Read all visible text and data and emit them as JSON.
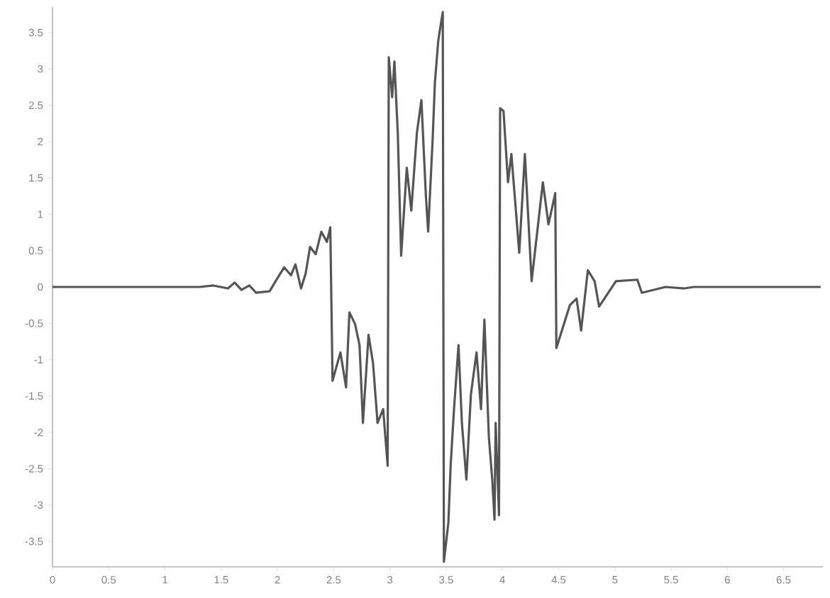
{
  "chart_data": {
    "type": "line",
    "color": "#555555",
    "x": [
      0,
      1.31,
      1.43,
      1.56,
      1.62,
      1.68,
      1.75,
      1.81,
      1.93,
      2.0,
      2.06,
      2.12,
      2.16,
      2.21,
      2.25,
      2.29,
      2.34,
      2.39,
      2.44,
      2.47,
      2.49,
      2.56,
      2.61,
      2.64,
      2.69,
      2.73,
      2.76,
      2.81,
      2.85,
      2.89,
      2.94,
      2.98,
      2.99,
      3.02,
      3.04,
      3.07,
      3.1,
      3.15,
      3.19,
      3.24,
      3.28,
      3.32,
      3.34,
      3.38,
      3.4,
      3.43,
      3.45,
      3.47,
      3.48,
      3.52,
      3.54,
      3.57,
      3.61,
      3.64,
      3.68,
      3.72,
      3.77,
      3.81,
      3.84,
      3.88,
      3.91,
      3.93,
      3.94,
      3.97,
      3.98,
      4.01,
      4.05,
      4.08,
      4.15,
      4.2,
      4.26,
      4.36,
      4.41,
      4.47,
      4.48,
      4.6,
      4.66,
      4.7,
      4.76,
      4.82,
      4.86,
      5.01,
      5.2,
      5.24,
      5.45,
      5.62,
      5.7,
      6.83
    ],
    "values": [
      0,
      0,
      0.02,
      -0.02,
      0.06,
      -0.04,
      0.02,
      -0.08,
      -0.06,
      0.12,
      0.27,
      0.16,
      0.31,
      -0.02,
      0.18,
      0.55,
      0.45,
      0.76,
      0.62,
      0.82,
      -1.29,
      -0.9,
      -1.38,
      -0.35,
      -0.51,
      -0.8,
      -1.87,
      -0.66,
      -1.05,
      -1.87,
      -1.68,
      -2.46,
      3.16,
      2.61,
      3.1,
      2.12,
      0.43,
      1.64,
      1.05,
      2.12,
      2.57,
      1.25,
      0.76,
      2.03,
      2.81,
      3.39,
      3.59,
      3.78,
      -3.78,
      -3.24,
      -2.46,
      -1.68,
      -0.8,
      -1.87,
      -2.65,
      -1.48,
      -0.9,
      -1.68,
      -0.45,
      -2.07,
      -2.65,
      -3.2,
      -1.87,
      -3.14,
      2.46,
      2.42,
      1.44,
      1.83,
      0.47,
      1.83,
      0.08,
      1.44,
      0.86,
      1.29,
      -0.84,
      -0.25,
      -0.16,
      -0.6,
      0.23,
      0.08,
      -0.27,
      0.08,
      0.1,
      -0.08,
      0,
      -0.02,
      0,
      0
    ],
    "xlim": [
      0,
      6.85
    ],
    "ylim": [
      -3.85,
      3.85
    ],
    "xticks": [
      0,
      0.5,
      1,
      1.5,
      2,
      2.5,
      3,
      3.5,
      4,
      4.5,
      5,
      5.5,
      6,
      6.5
    ],
    "yticks": [
      -3.5,
      -3,
      -2.5,
      -2,
      -1.5,
      -1,
      -0.5,
      0,
      0.5,
      1,
      1.5,
      2,
      2.5,
      3,
      3.5
    ]
  }
}
